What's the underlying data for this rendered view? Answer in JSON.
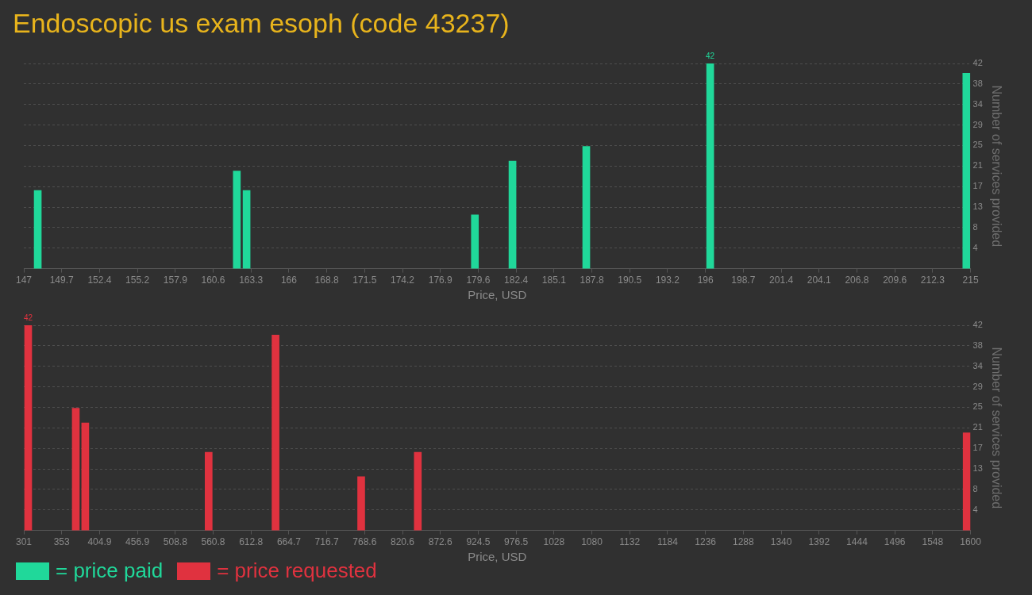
{
  "chart_data": [
    {
      "type": "bar",
      "title": "Endoscopic us exam esoph (code 43237)",
      "xlabel": "Price, USD",
      "ylabel": "Number of services provided",
      "x": [
        148.0,
        162.3,
        163.0,
        179.4,
        182.1,
        187.4,
        196.3,
        214.7
      ],
      "series": [
        {
          "name": "= price paid",
          "color": "#20d89a",
          "values": [
            16,
            20,
            16,
            11,
            22,
            25,
            42,
            40
          ],
          "value_labels": [
            null,
            null,
            null,
            null,
            null,
            null,
            "42",
            null
          ]
        }
      ],
      "xlim": [
        147,
        215
      ],
      "xticks": [
        147,
        {
          "value": 149.72,
          "label": "149.7"
        },
        {
          "value": 152.44,
          "label": "152.4"
        },
        {
          "value": 155.16,
          "label": "155.2"
        },
        {
          "value": 157.88,
          "label": "157.9"
        },
        {
          "value": 160.6,
          "label": "160.6"
        },
        {
          "value": 163.32,
          "label": "163.3"
        },
        {
          "value": 166.04,
          "label": "166"
        },
        {
          "value": 168.76,
          "label": "168.8"
        },
        {
          "value": 171.48,
          "label": "171.5"
        },
        {
          "value": 174.2,
          "label": "174.2"
        },
        {
          "value": 176.92,
          "label": "176.9"
        },
        {
          "value": 179.64,
          "label": "179.6"
        },
        {
          "value": 182.36,
          "label": "182.4"
        },
        {
          "value": 185.08,
          "label": "185.1"
        },
        {
          "value": 187.8,
          "label": "187.8"
        },
        {
          "value": 190.52,
          "label": "190.5"
        },
        {
          "value": 193.24,
          "label": "193.2"
        },
        {
          "value": 195.96,
          "label": "196"
        },
        {
          "value": 198.68,
          "label": "198.7"
        },
        {
          "value": 201.4,
          "label": "201.4"
        },
        {
          "value": 204.12,
          "label": "204.1"
        },
        {
          "value": 206.84,
          "label": "206.8"
        },
        {
          "value": 209.56,
          "label": "209.6"
        },
        {
          "value": 212.28,
          "label": "212.3"
        },
        215
      ],
      "ylim": [
        0,
        42
      ],
      "yticks": [
        {
          "value": 4.2,
          "label": "4"
        },
        {
          "value": 8.4,
          "label": "8"
        },
        {
          "value": 12.6,
          "label": "13"
        },
        {
          "value": 16.8,
          "label": "17"
        },
        {
          "value": 21,
          "label": "21"
        },
        {
          "value": 25.2,
          "label": "25"
        },
        {
          "value": 29.4,
          "label": "29"
        },
        {
          "value": 33.6,
          "label": "34"
        },
        {
          "value": 37.8,
          "label": "38"
        },
        {
          "value": 42,
          "label": "42"
        }
      ],
      "grid": "y",
      "legend": "bottom left"
    },
    {
      "type": "bar",
      "xlabel": "Price, USD",
      "ylabel": "Number of services provided",
      "x": [
        307,
        372.3,
        385.3,
        554.6,
        646.4,
        763.9,
        841.6,
        1594.7
      ],
      "series": [
        {
          "name": "= price requested",
          "color": "#e0323f",
          "values": [
            42,
            25,
            22,
            16,
            40,
            11,
            16,
            20
          ],
          "value_labels": [
            "42",
            null,
            null,
            null,
            null,
            null,
            null,
            null
          ]
        }
      ],
      "xlim": [
        301,
        1600
      ],
      "xticks": [
        301,
        {
          "value": 352.96,
          "label": "353"
        },
        {
          "value": 404.92,
          "label": "404.9"
        },
        {
          "value": 456.88,
          "label": "456.9"
        },
        {
          "value": 508.84,
          "label": "508.8"
        },
        {
          "value": 560.8,
          "label": "560.8"
        },
        {
          "value": 612.76,
          "label": "612.8"
        },
        {
          "value": 664.72,
          "label": "664.7"
        },
        {
          "value": 716.68,
          "label": "716.7"
        },
        {
          "value": 768.64,
          "label": "768.6"
        },
        {
          "value": 820.6,
          "label": "820.6"
        },
        {
          "value": 872.56,
          "label": "872.6"
        },
        {
          "value": 924.52,
          "label": "924.5"
        },
        {
          "value": 976.48,
          "label": "976.5"
        },
        {
          "value": 1028.44,
          "label": "1028"
        },
        {
          "value": 1080.4,
          "label": "1080"
        },
        {
          "value": 1132.36,
          "label": "1132"
        },
        {
          "value": 1184.32,
          "label": "1184"
        },
        {
          "value": 1236.28,
          "label": "1236"
        },
        {
          "value": 1288.24,
          "label": "1288"
        },
        {
          "value": 1340.2,
          "label": "1340"
        },
        {
          "value": 1392.16,
          "label": "1392"
        },
        {
          "value": 1444.12,
          "label": "1444"
        },
        {
          "value": 1496.08,
          "label": "1496"
        },
        {
          "value": 1548.04,
          "label": "1548"
        },
        1600
      ],
      "ylim": [
        0,
        42
      ],
      "yticks": [
        {
          "value": 4.2,
          "label": "4"
        },
        {
          "value": 8.4,
          "label": "8"
        },
        {
          "value": 12.6,
          "label": "13"
        },
        {
          "value": 16.8,
          "label": "17"
        },
        {
          "value": 21,
          "label": "21"
        },
        {
          "value": 25.2,
          "label": "25"
        },
        {
          "value": 29.4,
          "label": "29"
        },
        {
          "value": 33.6,
          "label": "34"
        },
        {
          "value": 37.8,
          "label": "38"
        },
        {
          "value": 42,
          "label": "42"
        }
      ],
      "grid": "y",
      "legend": "bottom left"
    }
  ]
}
